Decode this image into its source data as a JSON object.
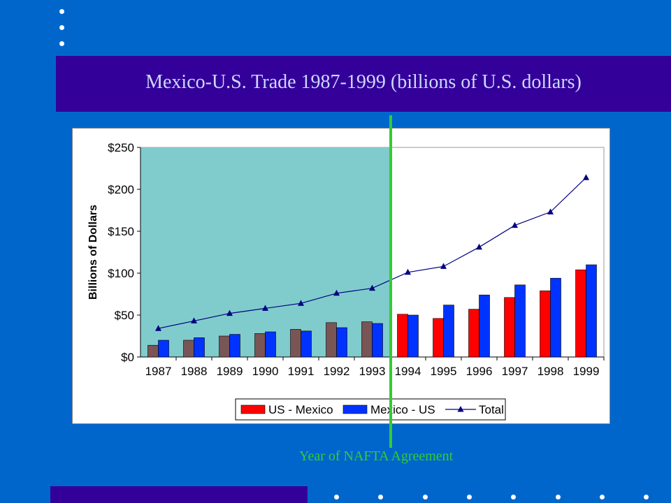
{
  "slide": {
    "title": "Mexico-U.S. Trade 1987-1999 (billions of U.S. dollars)",
    "annotation": "Year of NAFTA Agreement"
  },
  "colors": {
    "background": "#0066cc",
    "bar_band": "#330099",
    "us_mexico": "#ff0000",
    "mexico_us": "#0033ff",
    "pre_nafta_bar": "#7a5555",
    "pre_nafta_shade": "#80cccc",
    "total_line": "#000080",
    "nafta_line": "#33cc33"
  },
  "chart_data": {
    "type": "bar",
    "ylabel": "Billions of Dollars",
    "xlabel": "",
    "ylim": [
      0,
      250
    ],
    "yticks": [
      "$0",
      "$50",
      "$100",
      "$150",
      "$200",
      "$250"
    ],
    "categories": [
      "1987",
      "1988",
      "1989",
      "1990",
      "1991",
      "1992",
      "1993",
      "1994",
      "1995",
      "1996",
      "1997",
      "1998",
      "1999"
    ],
    "series": [
      {
        "name": "US - Mexico",
        "type": "bar",
        "values": [
          14,
          20,
          25,
          28,
          33,
          41,
          42,
          51,
          46,
          57,
          71,
          79,
          104
        ]
      },
      {
        "name": "Mexico - US",
        "type": "bar",
        "values": [
          20,
          23,
          27,
          30,
          31,
          35,
          40,
          50,
          62,
          74,
          86,
          94,
          110
        ]
      },
      {
        "name": "Total",
        "type": "line",
        "values": [
          34,
          43,
          52,
          58,
          64,
          76,
          82,
          101,
          108,
          131,
          157,
          173,
          214
        ]
      }
    ],
    "shaded_years": [
      "1987",
      "1988",
      "1989",
      "1990",
      "1991",
      "1992",
      "1993"
    ],
    "legend_position": "bottom",
    "grid": false
  }
}
